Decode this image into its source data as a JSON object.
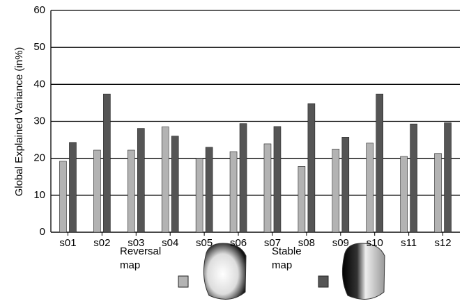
{
  "chart_data": {
    "type": "bar",
    "y_label": "Global Explained Variance (in%)",
    "categories": [
      "s01",
      "s02",
      "s03",
      "s04",
      "s05",
      "s06",
      "s07",
      "s08",
      "s09",
      "s10",
      "s11",
      "s12"
    ],
    "series": [
      {
        "name": "Reversal map",
        "color": "#b3b3b3",
        "values": [
          19.2,
          22.2,
          22.2,
          28.5,
          20.0,
          21.8,
          23.9,
          17.8,
          22.5,
          24.1,
          20.5,
          21.3
        ]
      },
      {
        "name": "Stable map",
        "color": "#555555",
        "values": [
          24.3,
          37.4,
          28.1,
          26.0,
          23.0,
          29.4,
          28.6,
          34.8,
          25.7,
          37.4,
          29.3,
          29.6
        ]
      }
    ],
    "ylim": [
      0,
      60
    ],
    "yticks": [
      0,
      10,
      20,
      30,
      40,
      50,
      60
    ],
    "grid": true
  }
}
